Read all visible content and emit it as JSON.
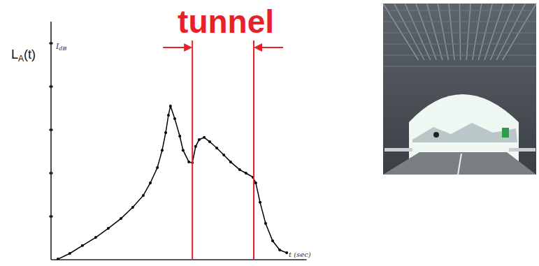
{
  "chart_data": {
    "type": "line",
    "y_label": "LA(t)",
    "y_unit": "IdB",
    "x_label": "t (sec)",
    "x": [
      2.2,
      6.9,
      11.9,
      17.2,
      22.2,
      27.2,
      31.9,
      36.1,
      38.9,
      41.7,
      43.6,
      45.0,
      46.1,
      46.9,
      48.6,
      50.6,
      51.9,
      54.2,
      55.6,
      56.9,
      58.3,
      60.3,
      62.5,
      65.3,
      68.1,
      70.8,
      74.4,
      76.9,
      79.7,
      80.8,
      82.5,
      84.7,
      87.5,
      90.3,
      93.1
    ],
    "values": [
      0.3,
      2.9,
      6.5,
      10.3,
      14.5,
      19.0,
      24.2,
      29.7,
      35.5,
      42.6,
      50.6,
      58.7,
      66.8,
      71.0,
      65.2,
      57.1,
      50.6,
      45.2,
      44.8,
      52.3,
      55.5,
      56.5,
      54.5,
      51.6,
      48.4,
      45.2,
      41.6,
      40.0,
      38.1,
      35.5,
      26.5,
      16.8,
      8.7,
      4.5,
      3.2
    ],
    "xlim": [
      0,
      101
    ],
    "ylim": [
      0,
      110
    ],
    "yticks": [
      20,
      40,
      60,
      80,
      100
    ],
    "tick_labels": false,
    "marker": "circle",
    "color": "#000000",
    "annotations": [
      {
        "text": "tunnel",
        "x_start": 55.6,
        "x_end": 80.0,
        "color": "#e8202a"
      }
    ]
  }
}
